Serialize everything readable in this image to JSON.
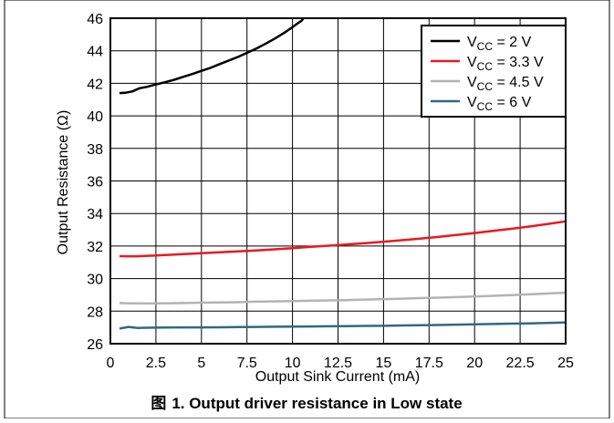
{
  "chart_data": {
    "type": "line",
    "xlabel": "Output Sink Current (mA)",
    "ylabel": "Output Resistance (Ω)",
    "caption_prefix": "图",
    "caption_text": "1. Output driver resistance in Low state",
    "xlim": [
      0,
      25
    ],
    "ylim": [
      26,
      46
    ],
    "xticks": [
      "0",
      "2.5",
      "5",
      "7.5",
      "10",
      "12.5",
      "15",
      "17.5",
      "20",
      "22.5",
      "25"
    ],
    "yticks": [
      "26",
      "28",
      "30",
      "32",
      "34",
      "36",
      "38",
      "40",
      "42",
      "44",
      "46"
    ],
    "grid": true,
    "legend_position": "top-right",
    "series": [
      {
        "name_main": "V",
        "name_sub": "CC",
        "name_rest": " = 2 V",
        "color": "#000000",
        "points": [
          [
            0.5,
            41.4
          ],
          [
            0.8,
            41.42
          ],
          [
            1.2,
            41.5
          ],
          [
            1.6,
            41.7
          ],
          [
            2,
            41.78
          ],
          [
            2.5,
            41.93
          ],
          [
            3,
            42.07
          ],
          [
            3.5,
            42.22
          ],
          [
            4,
            42.4
          ],
          [
            4.5,
            42.57
          ],
          [
            5,
            42.77
          ],
          [
            5.5,
            42.95
          ],
          [
            6,
            43.18
          ],
          [
            6.5,
            43.4
          ],
          [
            7,
            43.62
          ],
          [
            7.5,
            43.87
          ],
          [
            8,
            44.13
          ],
          [
            8.5,
            44.42
          ],
          [
            9,
            44.73
          ],
          [
            9.5,
            45.07
          ],
          [
            10,
            45.45
          ],
          [
            10.3,
            45.7
          ],
          [
            10.5,
            45.85
          ],
          [
            10.6,
            46
          ]
        ]
      },
      {
        "name_main": "V",
        "name_sub": "CC",
        "name_rest": " = 3.3 V",
        "color": "#e8191f",
        "points": [
          [
            0.5,
            31.38
          ],
          [
            1,
            31.37
          ],
          [
            1.5,
            31.37
          ],
          [
            2,
            31.4
          ],
          [
            2.5,
            31.42
          ],
          [
            3,
            31.45
          ],
          [
            4,
            31.5
          ],
          [
            5,
            31.56
          ],
          [
            6,
            31.62
          ],
          [
            7,
            31.67
          ],
          [
            8,
            31.73
          ],
          [
            9,
            31.8
          ],
          [
            10,
            31.87
          ],
          [
            11,
            31.95
          ],
          [
            12,
            32.02
          ],
          [
            13,
            32.1
          ],
          [
            14,
            32.18
          ],
          [
            15,
            32.27
          ],
          [
            16,
            32.36
          ],
          [
            17,
            32.46
          ],
          [
            18,
            32.56
          ],
          [
            19,
            32.68
          ],
          [
            20,
            32.8
          ],
          [
            21,
            32.93
          ],
          [
            22,
            33.06
          ],
          [
            23,
            33.2
          ],
          [
            24,
            33.35
          ],
          [
            25,
            33.52
          ]
        ]
      },
      {
        "name_main": "V",
        "name_sub": "CC",
        "name_rest": " = 4.5 V",
        "color": "#b3b3b3",
        "points": [
          [
            0.5,
            28.5
          ],
          [
            1,
            28.48
          ],
          [
            2,
            28.47
          ],
          [
            3,
            28.48
          ],
          [
            4,
            28.5
          ],
          [
            5,
            28.52
          ],
          [
            6,
            28.53
          ],
          [
            7,
            28.55
          ],
          [
            8,
            28.58
          ],
          [
            9,
            28.6
          ],
          [
            10,
            28.62
          ],
          [
            11,
            28.64
          ],
          [
            12,
            28.66
          ],
          [
            13,
            28.68
          ],
          [
            14,
            28.71
          ],
          [
            15,
            28.74
          ],
          [
            16,
            28.77
          ],
          [
            17,
            28.8
          ],
          [
            18,
            28.83
          ],
          [
            19,
            28.86
          ],
          [
            20,
            28.9
          ],
          [
            21,
            28.94
          ],
          [
            22,
            28.98
          ],
          [
            23,
            29.03
          ],
          [
            24,
            29.08
          ],
          [
            25,
            29.14
          ]
        ]
      },
      {
        "name_main": "V",
        "name_sub": "CC",
        "name_rest": " = 6 V",
        "color": "#2f6a80",
        "points": [
          [
            0.5,
            26.93
          ],
          [
            1,
            27.03
          ],
          [
            1.5,
            26.97
          ],
          [
            2,
            26.98
          ],
          [
            3,
            26.99
          ],
          [
            4,
            27.0
          ],
          [
            5,
            27.0
          ],
          [
            6,
            27.01
          ],
          [
            7,
            27.02
          ],
          [
            8,
            27.03
          ],
          [
            9,
            27.04
          ],
          [
            10,
            27.05
          ],
          [
            11,
            27.06
          ],
          [
            12,
            27.07
          ],
          [
            13,
            27.08
          ],
          [
            14,
            27.09
          ],
          [
            15,
            27.1
          ],
          [
            16,
            27.12
          ],
          [
            17,
            27.13
          ],
          [
            18,
            27.15
          ],
          [
            19,
            27.17
          ],
          [
            20,
            27.19
          ],
          [
            21,
            27.21
          ],
          [
            22,
            27.23
          ],
          [
            23,
            27.25
          ],
          [
            24,
            27.28
          ],
          [
            25,
            27.3
          ]
        ]
      }
    ]
  }
}
